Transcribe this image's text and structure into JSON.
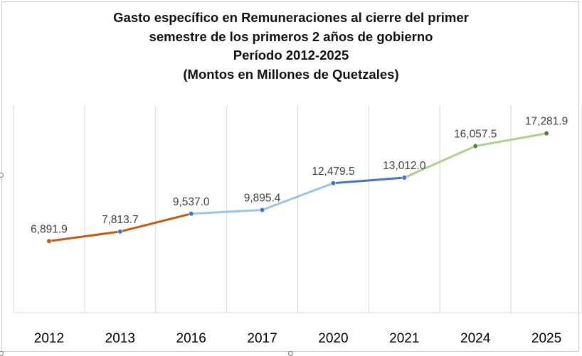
{
  "chart_data": {
    "type": "line",
    "title_lines": [
      "Gasto específico en Remuneraciones al cierre del primer",
      "semestre de los primeros 2 años de gobierno",
      "Período 2012-2025",
      "(Montos en Millones de Quetzales)"
    ],
    "categories": [
      "2012",
      "2013",
      "2016",
      "2017",
      "2020",
      "2021",
      "2024",
      "2025"
    ],
    "values": [
      6891.9,
      7813.7,
      9537.0,
      9895.4,
      12479.5,
      13012.0,
      16057.5,
      17281.9
    ],
    "value_labels": [
      "6,891.9",
      "7,813.7",
      "9,537.0",
      "9,895.4",
      "12,479.5",
      "13,012.0",
      "16,057.5",
      "17,281.9"
    ],
    "segments": [
      {
        "from": 0,
        "to": 2,
        "color": "#c55a11"
      },
      {
        "from": 2,
        "to": 4,
        "color": "#9dc3e6"
      },
      {
        "from": 4,
        "to": 5,
        "color": "#4472c4"
      },
      {
        "from": 5,
        "to": 7,
        "color": "#a9d18e"
      }
    ],
    "point_colors": [
      "#c55a11",
      "#4472c4",
      "#4472c4",
      "#4472c4",
      "#4472c4",
      "#4472c4",
      "#548235",
      "#548235"
    ],
    "ylim": [
      0,
      20000
    ],
    "grid": "vertical",
    "legend": "none"
  }
}
